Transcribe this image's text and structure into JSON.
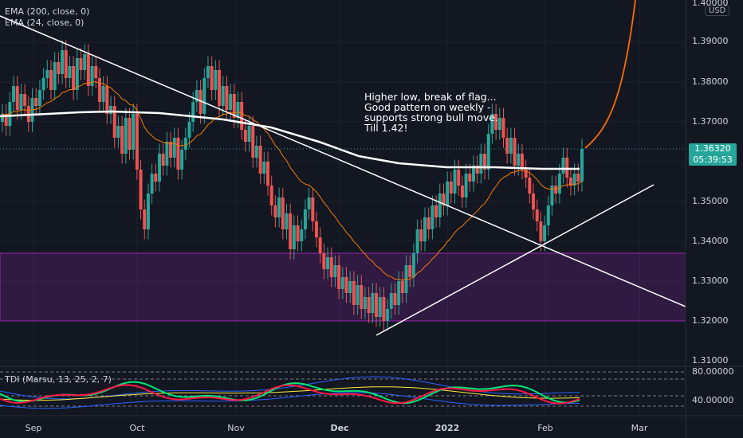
{
  "legend": {
    "ema200": "EMA (200, close, 0)",
    "ema24": "EMA (24, close, 0)",
    "tdi": "TDI (Marsu, 13, 25, 2, 7)"
  },
  "price_axis": {
    "currency": "USD",
    "top_value": "1.40000",
    "labels": [
      "1.39000",
      "1.38000",
      "1.37000",
      "1.35000",
      "1.34000",
      "1.33000",
      "1.32000",
      "1.31000"
    ],
    "current_price": "1.36320",
    "countdown": "05:39:53"
  },
  "tdi_axis": {
    "labels": [
      "80.00000",
      "40.00000"
    ]
  },
  "time_axis": {
    "labels": [
      "Sep",
      "Oct",
      "Nov",
      "Dec",
      "2022",
      "Feb",
      "Mar"
    ]
  },
  "annotation": "Higher low, break of flag...\nGood pattern on weekly -\nsupports strong bull move.\nTill 1.42!",
  "colors": {
    "background": "#131722",
    "up_candle": "#26a69a",
    "down_candle": "#ef5350",
    "ema200": "#ffffff",
    "ema24": "#f57c00",
    "zone": "#9c27b0",
    "projection": "#ff6d00"
  },
  "chart_data": {
    "type": "candlestick",
    "symbol_quote_currency": "USD",
    "y_range": [
      1.31,
      1.4
    ],
    "zone": [
      1.32,
      1.337
    ],
    "last_price": 1.3632,
    "closes": [
      1.372,
      1.369,
      1.375,
      1.379,
      1.373,
      1.377,
      1.374,
      1.37,
      1.376,
      1.374,
      1.378,
      1.381,
      1.383,
      1.378,
      1.385,
      1.382,
      1.388,
      1.381,
      1.384,
      1.378,
      1.386,
      1.383,
      1.387,
      1.379,
      1.384,
      1.381,
      1.375,
      1.379,
      1.372,
      1.374,
      1.366,
      1.369,
      1.362,
      1.371,
      1.363,
      1.372,
      1.358,
      1.348,
      1.343,
      1.352,
      1.357,
      1.355,
      1.362,
      1.359,
      1.365,
      1.361,
      1.366,
      1.358,
      1.363,
      1.366,
      1.37,
      1.375,
      1.378,
      1.372,
      1.381,
      1.384,
      1.378,
      1.383,
      1.374,
      1.379,
      1.373,
      1.377,
      1.371,
      1.375,
      1.368,
      1.365,
      1.369,
      1.361,
      1.364,
      1.357,
      1.36,
      1.354,
      1.349,
      1.346,
      1.351,
      1.343,
      1.347,
      1.338,
      1.344,
      1.34,
      1.343,
      1.348,
      1.351,
      1.345,
      1.341,
      1.337,
      1.333,
      1.336,
      1.331,
      1.334,
      1.328,
      1.331,
      1.327,
      1.33,
      1.324,
      1.329,
      1.323,
      1.326,
      1.322,
      1.327,
      1.321,
      1.326,
      1.32,
      1.323,
      1.327,
      1.324,
      1.33,
      1.327,
      1.334,
      1.331,
      1.337,
      1.343,
      1.34,
      1.346,
      1.343,
      1.349,
      1.346,
      1.352,
      1.349,
      1.355,
      1.352,
      1.358,
      1.354,
      1.351,
      1.357,
      1.355,
      1.359,
      1.357,
      1.362,
      1.358,
      1.367,
      1.372,
      1.368,
      1.371,
      1.366,
      1.362,
      1.366,
      1.359,
      1.362,
      1.358,
      1.356,
      1.352,
      1.348,
      1.345,
      1.34,
      1.344,
      1.349,
      1.354,
      1.352,
      1.357,
      1.361,
      1.356,
      1.354,
      1.357,
      1.355,
      1.3632
    ]
  }
}
